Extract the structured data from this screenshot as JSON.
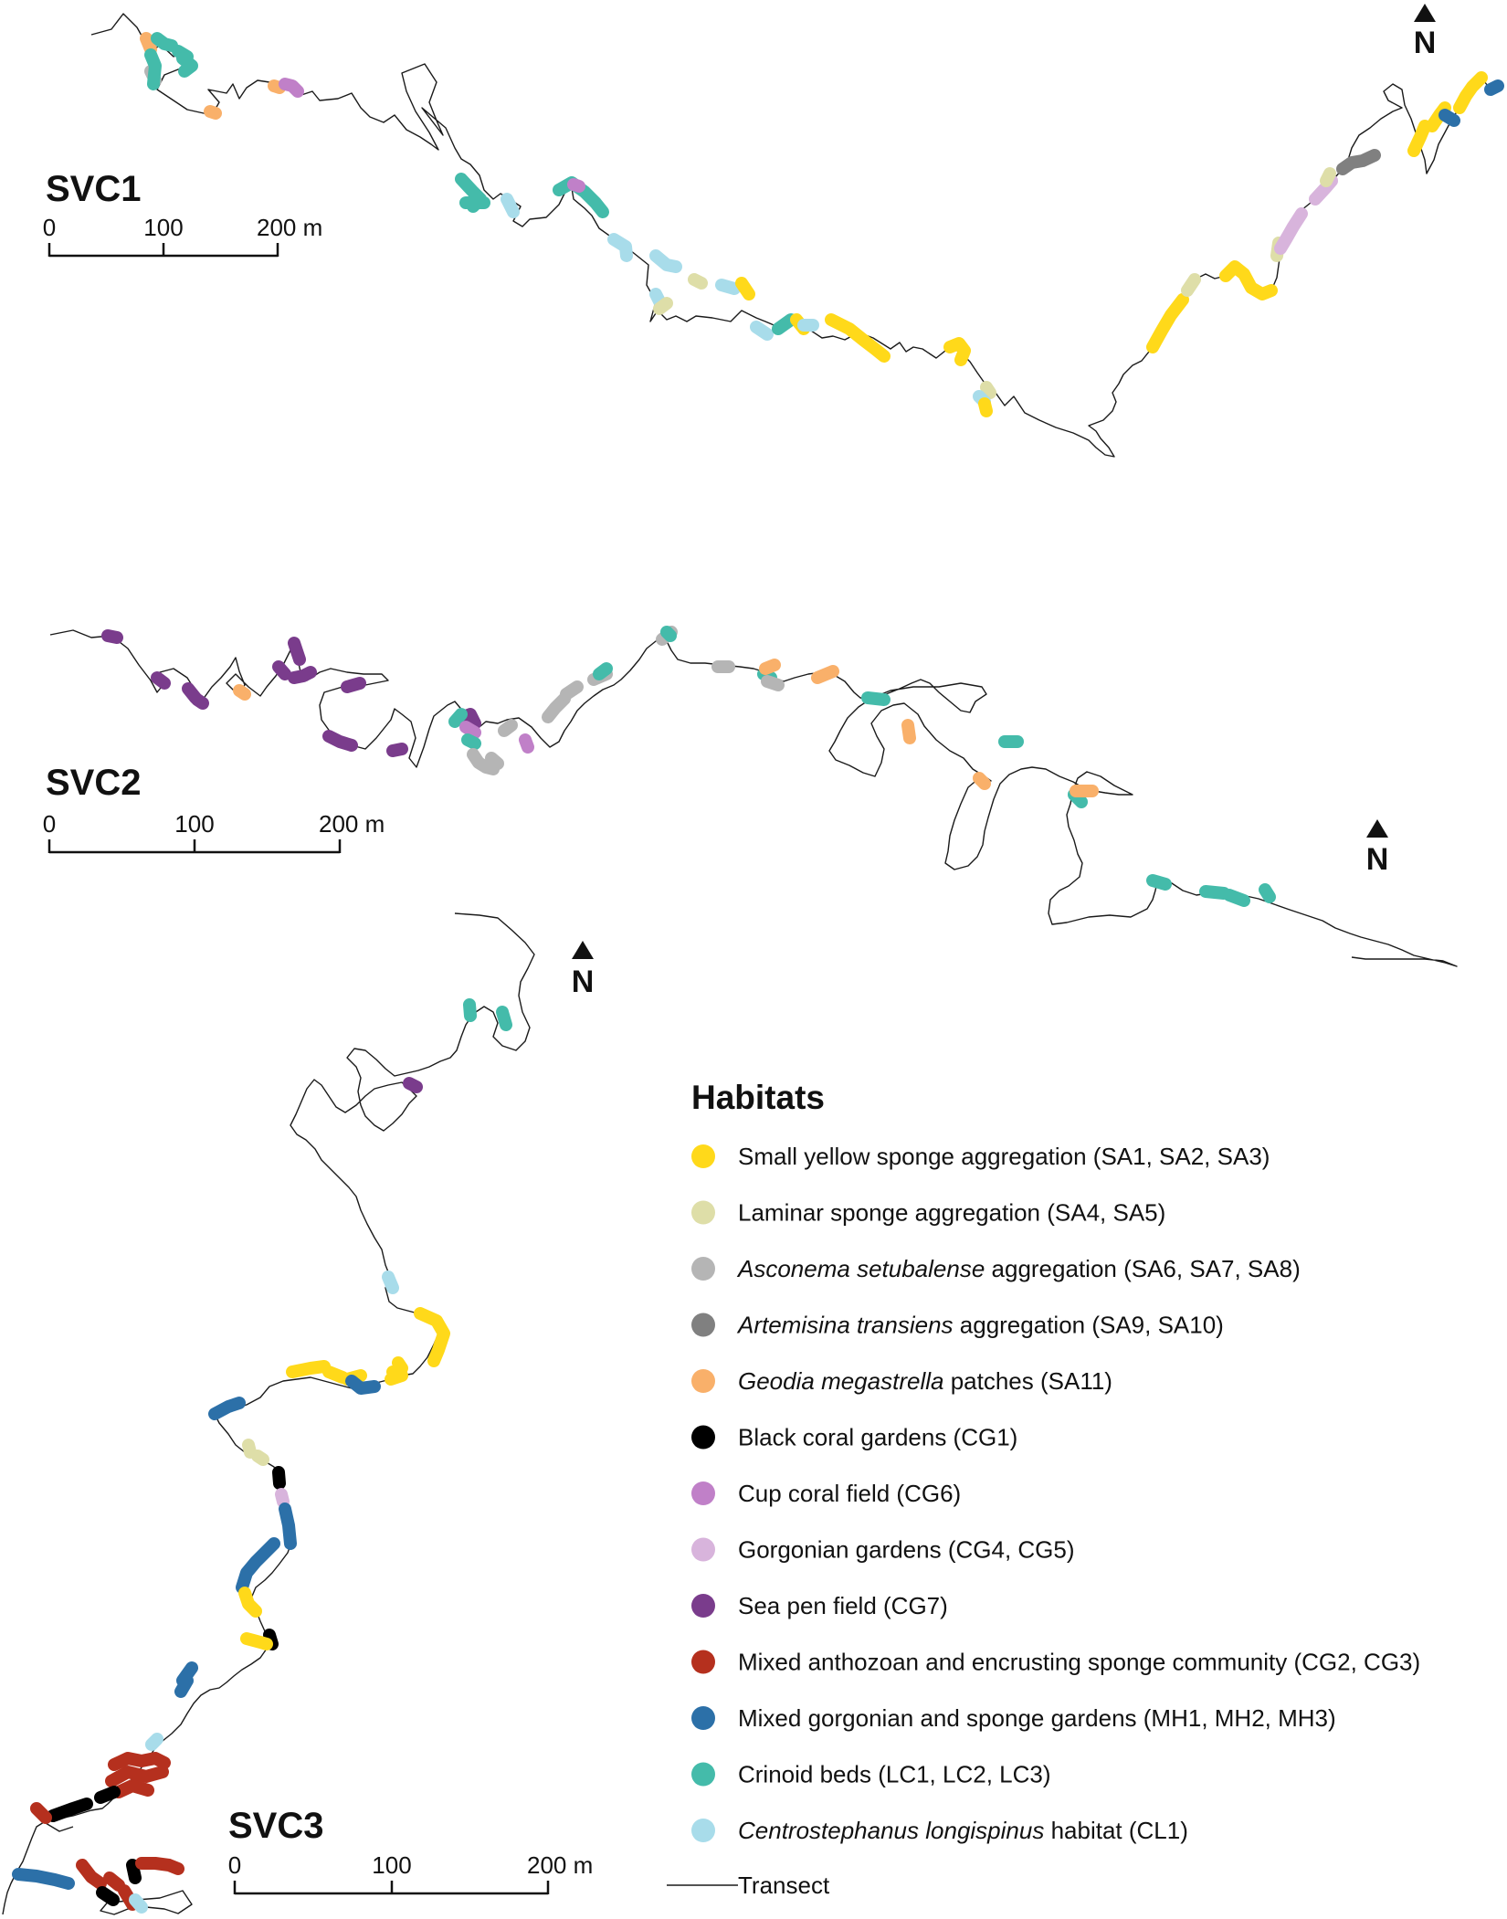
{
  "maps": [
    {
      "label": "SVC1",
      "scale": {
        "ticks": [
          "0",
          "100",
          "200 m"
        ]
      },
      "north": "N"
    },
    {
      "label": "SVC2",
      "scale": {
        "ticks": [
          "0",
          "100",
          "200 m"
        ]
      },
      "north": "N"
    },
    {
      "label": "SVC3",
      "scale": {
        "ticks": [
          "0",
          "100",
          "200 m"
        ]
      },
      "north": "N"
    }
  ],
  "legend": {
    "title": "Habitats",
    "items": [
      {
        "id": "SA123",
        "parts": [
          {
            "t": "Small yellow sponge aggregation (SA1, SA2, SA3)",
            "i": false
          }
        ],
        "color": "#FFD91A"
      },
      {
        "id": "SA45",
        "parts": [
          {
            "t": "Laminar sponge aggregation (SA4, SA5)",
            "i": false
          }
        ],
        "color": "#DEDEA8"
      },
      {
        "id": "SA678",
        "parts": [
          {
            "t": "Asconema setubalense",
            "i": true
          },
          {
            "t": " aggregation (SA6, SA7, SA8)",
            "i": false
          }
        ],
        "color": "#B5B5B5"
      },
      {
        "id": "SA910",
        "parts": [
          {
            "t": "Artemisina transiens",
            "i": true
          },
          {
            "t": " aggregation (SA9, SA10)",
            "i": false
          }
        ],
        "color": "#808080"
      },
      {
        "id": "SA11",
        "parts": [
          {
            "t": "Geodia megastrella",
            "i": true
          },
          {
            "t": " patches (SA11)",
            "i": false
          }
        ],
        "color": "#F9B06A"
      },
      {
        "id": "CG1",
        "parts": [
          {
            "t": "Black coral gardens (CG1)",
            "i": false
          }
        ],
        "color": "#000000"
      },
      {
        "id": "CG6",
        "parts": [
          {
            "t": "Cup coral field (CG6)",
            "i": false
          }
        ],
        "color": "#C080C8"
      },
      {
        "id": "CG45",
        "parts": [
          {
            "t": "Gorgonian gardens (CG4, CG5)",
            "i": false
          }
        ],
        "color": "#D8B4DC"
      },
      {
        "id": "CG7",
        "parts": [
          {
            "t": "Sea pen field (CG7)",
            "i": false
          }
        ],
        "color": "#7A3C8C"
      },
      {
        "id": "CG23",
        "parts": [
          {
            "t": "Mixed anthozoan and encrusting sponge community (CG2, CG3)",
            "i": false
          }
        ],
        "color": "#B5301E"
      },
      {
        "id": "MH",
        "parts": [
          {
            "t": "Mixed gorgonian and sponge gardens (MH1, MH2, MH3)",
            "i": false
          }
        ],
        "color": "#2C70A8"
      },
      {
        "id": "LC",
        "parts": [
          {
            "t": "Crinoid beds (LC1, LC2, LC3)",
            "i": false
          }
        ],
        "color": "#44BBAA"
      },
      {
        "id": "CL1",
        "parts": [
          {
            "t": "Centrostephanus longispinus",
            "i": true
          },
          {
            "t": " habitat  (CL1)",
            "i": false
          }
        ],
        "color": "#A8DCEA"
      }
    ],
    "transect_label": "Transect"
  }
}
